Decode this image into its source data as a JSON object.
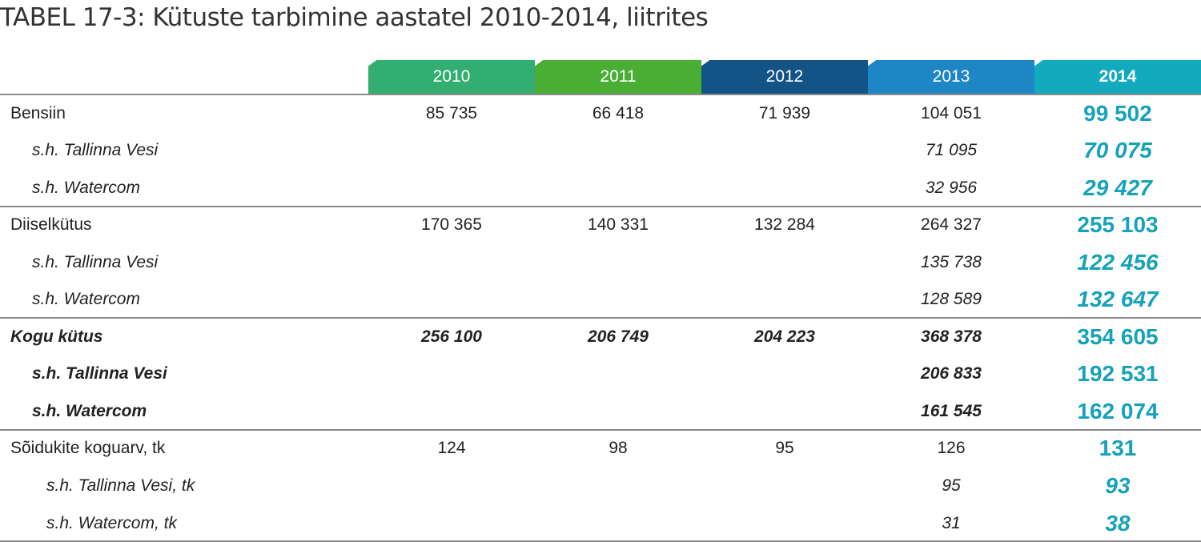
{
  "title": "TABEL 17-3: Kütuste tarbimine aastatel 2010-2014, liitrites",
  "colors": {
    "y2010": "#33ae73",
    "y2011": "#4aae35",
    "y2012": "#145386",
    "y2013": "#1f86c6",
    "y2014": "#13aabe",
    "accent": "#16a2b8"
  },
  "years": [
    "2010",
    "2011",
    "2012",
    "2013",
    "2014"
  ],
  "rows": [
    {
      "label": "Bensiin",
      "values": [
        "85 735",
        "66 418",
        "71 939",
        "104 051",
        "99 502"
      ]
    },
    {
      "label": "s.h. Tallinna Vesi",
      "values": [
        "",
        "",
        "",
        "71 095",
        "70 075"
      ]
    },
    {
      "label": "s.h. Watercom",
      "values": [
        "",
        "",
        "",
        "32 956",
        "29 427"
      ]
    },
    {
      "label": "Diiselkütus",
      "values": [
        "170 365",
        "140 331",
        "132 284",
        "264 327",
        "255 103"
      ]
    },
    {
      "label": "s.h. Tallinna Vesi",
      "values": [
        "",
        "",
        "",
        "135 738",
        "122 456"
      ]
    },
    {
      "label": "s.h. Watercom",
      "values": [
        "",
        "",
        "",
        "128 589",
        "132 647"
      ]
    },
    {
      "label": "Kogu kütus",
      "values": [
        "256 100",
        "206 749",
        "204 223",
        "368 378",
        "354 605"
      ]
    },
    {
      "label": "s.h. Tallinna Vesi",
      "values": [
        "",
        "",
        "",
        "206 833",
        "192 531"
      ]
    },
    {
      "label": "s.h. Watercom",
      "values": [
        "",
        "",
        "",
        "161 545",
        "162 074"
      ]
    },
    {
      "label": "Sõidukite koguarv, tk",
      "values": [
        "124",
        "98",
        "95",
        "126",
        "131"
      ]
    },
    {
      "label": "s.h. Tallinna Vesi, tk",
      "values": [
        "",
        "",
        "",
        "95",
        "93"
      ]
    },
    {
      "label": "s.h. Watercom, tk",
      "values": [
        "",
        "",
        "",
        "31",
        "38"
      ]
    }
  ]
}
